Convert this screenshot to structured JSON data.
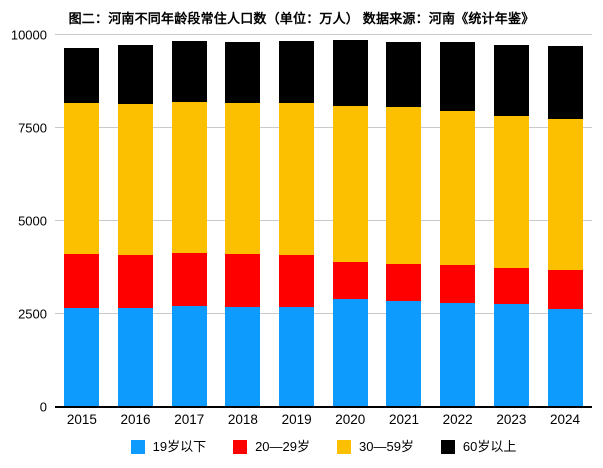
{
  "title": "图二：河南不同年龄段常住人口数（单位：万人） 数据来源：河南《统计年鉴》",
  "colors": {
    "blue": "#0d9bfd",
    "red": "#fe0000",
    "yellow": "#fcc000",
    "black": "#000000",
    "gridline": "#c9c9c9",
    "axis": "#000000",
    "background": "#ffffff"
  },
  "chart_data": {
    "type": "bar",
    "stacked": true,
    "title": "图二：河南不同年龄段常住人口数（单位：万人） 数据来源：河南《统计年鉴》",
    "xlabel": "",
    "ylabel": "",
    "unit": "万人",
    "categories": [
      "2015",
      "2016",
      "2017",
      "2018",
      "2019",
      "2020",
      "2021",
      "2022",
      "2023",
      "2024"
    ],
    "series": [
      {
        "name": "19岁以下",
        "color": "#0d9bfd",
        "values": [
          2650,
          2670,
          2725,
          2700,
          2700,
          2915,
          2860,
          2805,
          2780,
          2645
        ]
      },
      {
        "name": "20—29岁",
        "color": "#fe0000",
        "values": [
          1450,
          1430,
          1425,
          1400,
          1375,
          995,
          995,
          1020,
          970,
          1050
        ]
      },
      {
        "name": "30—59岁",
        "color": "#fcc000",
        "values": [
          4060,
          4040,
          4040,
          4060,
          4090,
          4170,
          4200,
          4145,
          4065,
          4035
        ]
      },
      {
        "name": "60岁以上",
        "color": "#000000",
        "values": [
          1480,
          1590,
          1640,
          1650,
          1675,
          1800,
          1755,
          1840,
          1925,
          1985
        ]
      }
    ],
    "totals": [
      9640,
      9730,
      9830,
      9810,
      9840,
      9880,
      9810,
      9810,
      9740,
      9715
    ],
    "ylim": [
      0,
      10000
    ],
    "yticks": [
      0,
      2500,
      5000,
      7500,
      10000
    ],
    "grid": "horizontal",
    "legend_position": "bottom"
  }
}
